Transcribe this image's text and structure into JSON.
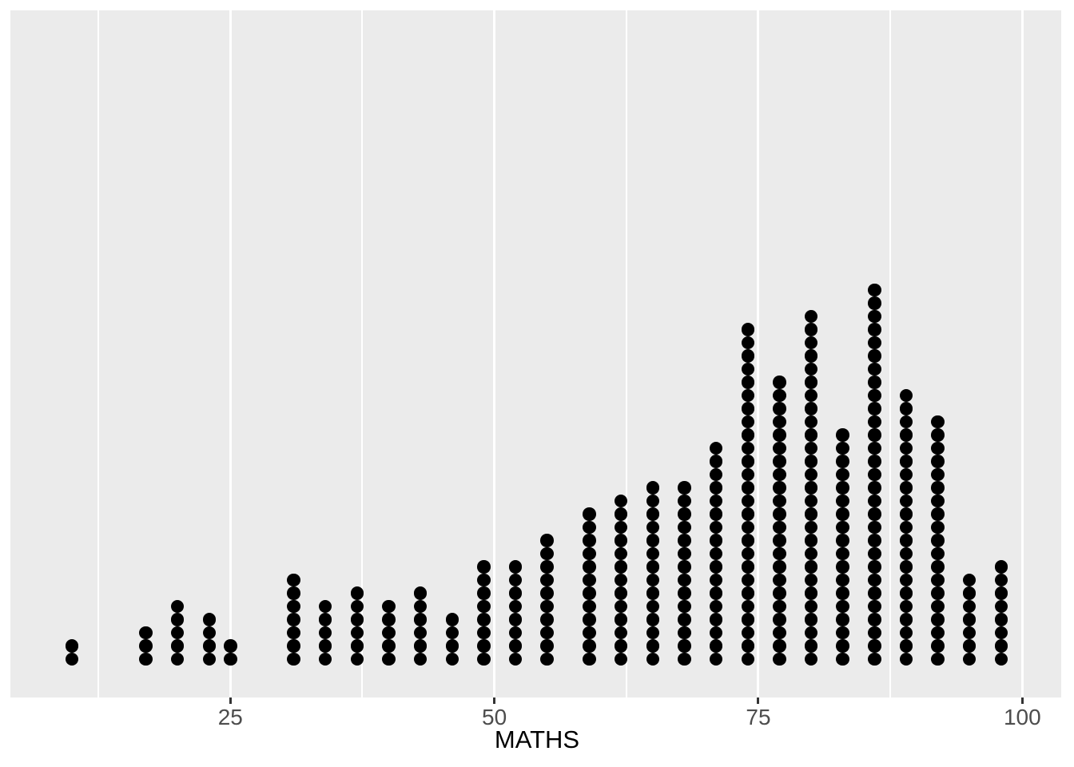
{
  "chart_data": {
    "type": "dotplot",
    "title": "",
    "xlabel": "MATHS",
    "ylabel": "",
    "x_ticks": [
      25,
      50,
      75,
      100
    ],
    "x_tick_labels": [
      "25",
      "50",
      "75",
      "100"
    ],
    "x_minor_gridlines": [
      12.5,
      37.5,
      62.5,
      87.5
    ],
    "xlim": [
      4.2,
      103.7
    ],
    "grid": "on",
    "legend": "none",
    "total_points": 322,
    "stacks": [
      {
        "x": 10,
        "count": 2
      },
      {
        "x": 17,
        "count": 3
      },
      {
        "x": 20,
        "count": 5
      },
      {
        "x": 23,
        "count": 4
      },
      {
        "x": 25,
        "count": 2
      },
      {
        "x": 31,
        "count": 7
      },
      {
        "x": 34,
        "count": 5
      },
      {
        "x": 37,
        "count": 6
      },
      {
        "x": 40,
        "count": 5
      },
      {
        "x": 43,
        "count": 6
      },
      {
        "x": 46,
        "count": 4
      },
      {
        "x": 49,
        "count": 8
      },
      {
        "x": 52,
        "count": 8
      },
      {
        "x": 55,
        "count": 10
      },
      {
        "x": 59,
        "count": 12
      },
      {
        "x": 62,
        "count": 13
      },
      {
        "x": 65,
        "count": 14
      },
      {
        "x": 68,
        "count": 14
      },
      {
        "x": 71,
        "count": 17
      },
      {
        "x": 74,
        "count": 26
      },
      {
        "x": 77,
        "count": 22
      },
      {
        "x": 80,
        "count": 27
      },
      {
        "x": 83,
        "count": 18
      },
      {
        "x": 86,
        "count": 29
      },
      {
        "x": 89,
        "count": 21
      },
      {
        "x": 92,
        "count": 19
      },
      {
        "x": 95,
        "count": 7
      },
      {
        "x": 98,
        "count": 8
      }
    ],
    "colors": {
      "panel_background": "#EBEBEB",
      "gridline": "#FFFFFF",
      "dot": "#000000",
      "axis_text": "#4D4D4D",
      "axis_title": "#000000",
      "tick_mark": "#333333"
    }
  }
}
